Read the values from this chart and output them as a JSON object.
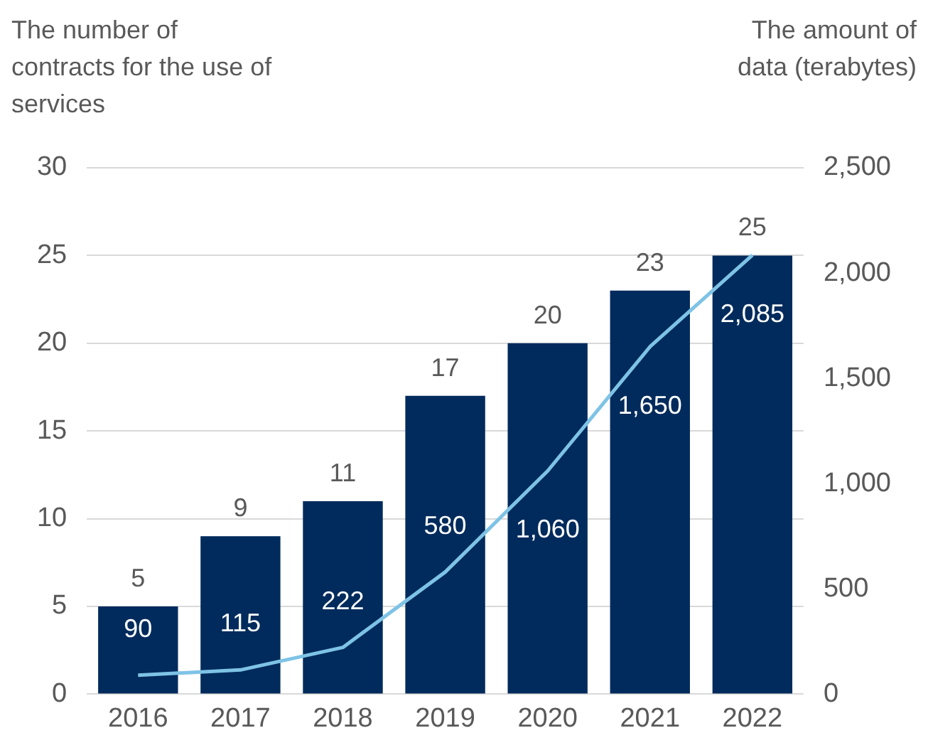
{
  "chart_data": {
    "type": "bar",
    "ylabel": "The number of contracts for the use of services",
    "y2label": "The amount of data (terabytes)",
    "categories": [
      "2016",
      "2017",
      "2018",
      "2019",
      "2020",
      "2021",
      "2022"
    ],
    "series": [
      {
        "color": "#002b5c",
        "values": [
          5,
          9,
          11,
          17,
          20,
          23,
          25
        ]
      },
      {
        "type": "line",
        "axis": "y2",
        "color": "#7ec3e6",
        "values": [
          90,
          115,
          222,
          580,
          1060,
          1650,
          2085
        ],
        "value_labels": [
          "90",
          "115",
          "222",
          "580",
          "1,060",
          "1,650",
          "2,085"
        ]
      }
    ],
    "ylim": [
      0,
      30
    ],
    "yticks": [
      0,
      5,
      10,
      15,
      20,
      25,
      30
    ],
    "y2lim": [
      0,
      2500
    ],
    "y2ticks": [
      {
        "value": 0,
        "label": "0"
      },
      {
        "value": 500,
        "label": "500"
      },
      {
        "value": 1000,
        "label": "1,000"
      },
      {
        "value": 1500,
        "label": "1,500"
      },
      {
        "value": 2000,
        "label": "2,000"
      },
      {
        "value": 2500,
        "label": "2,500"
      }
    ],
    "grid": "y",
    "legend": false,
    "marker": "none",
    "line_style": "solid",
    "data_labels": true
  }
}
